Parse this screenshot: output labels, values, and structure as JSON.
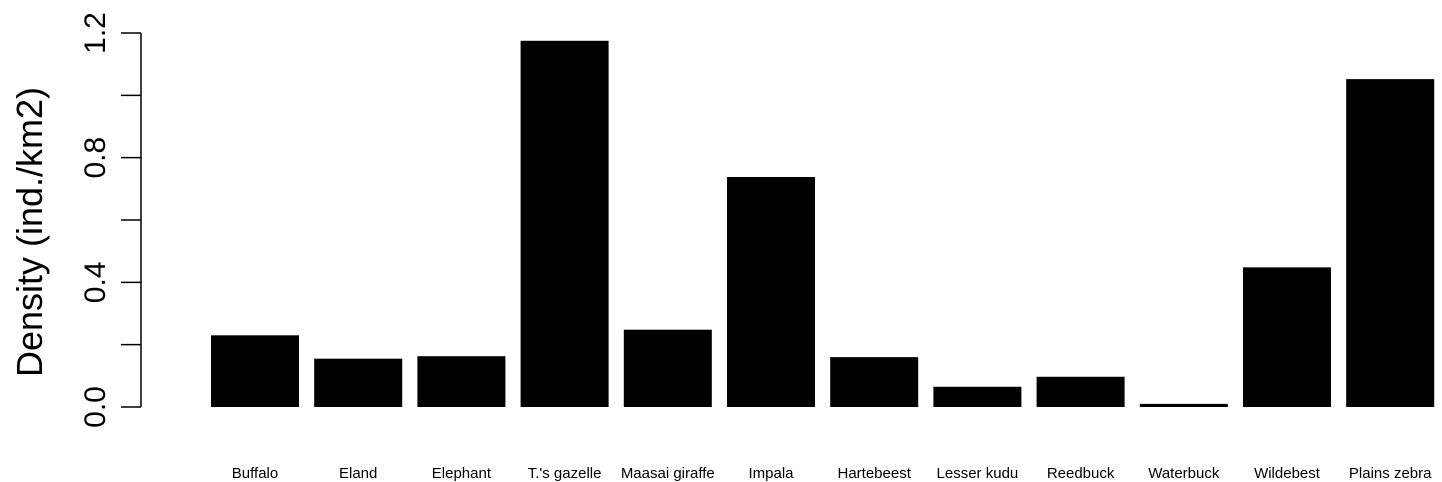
{
  "chart_data": {
    "type": "bar",
    "title": "",
    "xlabel": "",
    "ylabel": "Density (ind./km2)",
    "ylim": [
      0,
      1.2
    ],
    "yticks": [
      0.0,
      0.2,
      0.4,
      0.6,
      0.8,
      1.0,
      1.2
    ],
    "ytick_labels": [
      "0.0",
      "",
      "0.4",
      "",
      "0.8",
      "",
      "1.2"
    ],
    "grid": false,
    "legend": "none",
    "bar_color": "#000000",
    "categories": [
      "Buffalo",
      "Eland",
      "Elephant",
      "T.'s gazelle",
      "Maasai giraffe",
      "Impala",
      "Hartebeest",
      "Lesser kudu",
      "Reedbuck",
      "Waterbuck",
      "Wildebest",
      "Plains zebra"
    ],
    "values": [
      0.23,
      0.155,
      0.163,
      1.175,
      0.248,
      0.738,
      0.16,
      0.065,
      0.097,
      0.01,
      0.448,
      1.052
    ]
  }
}
